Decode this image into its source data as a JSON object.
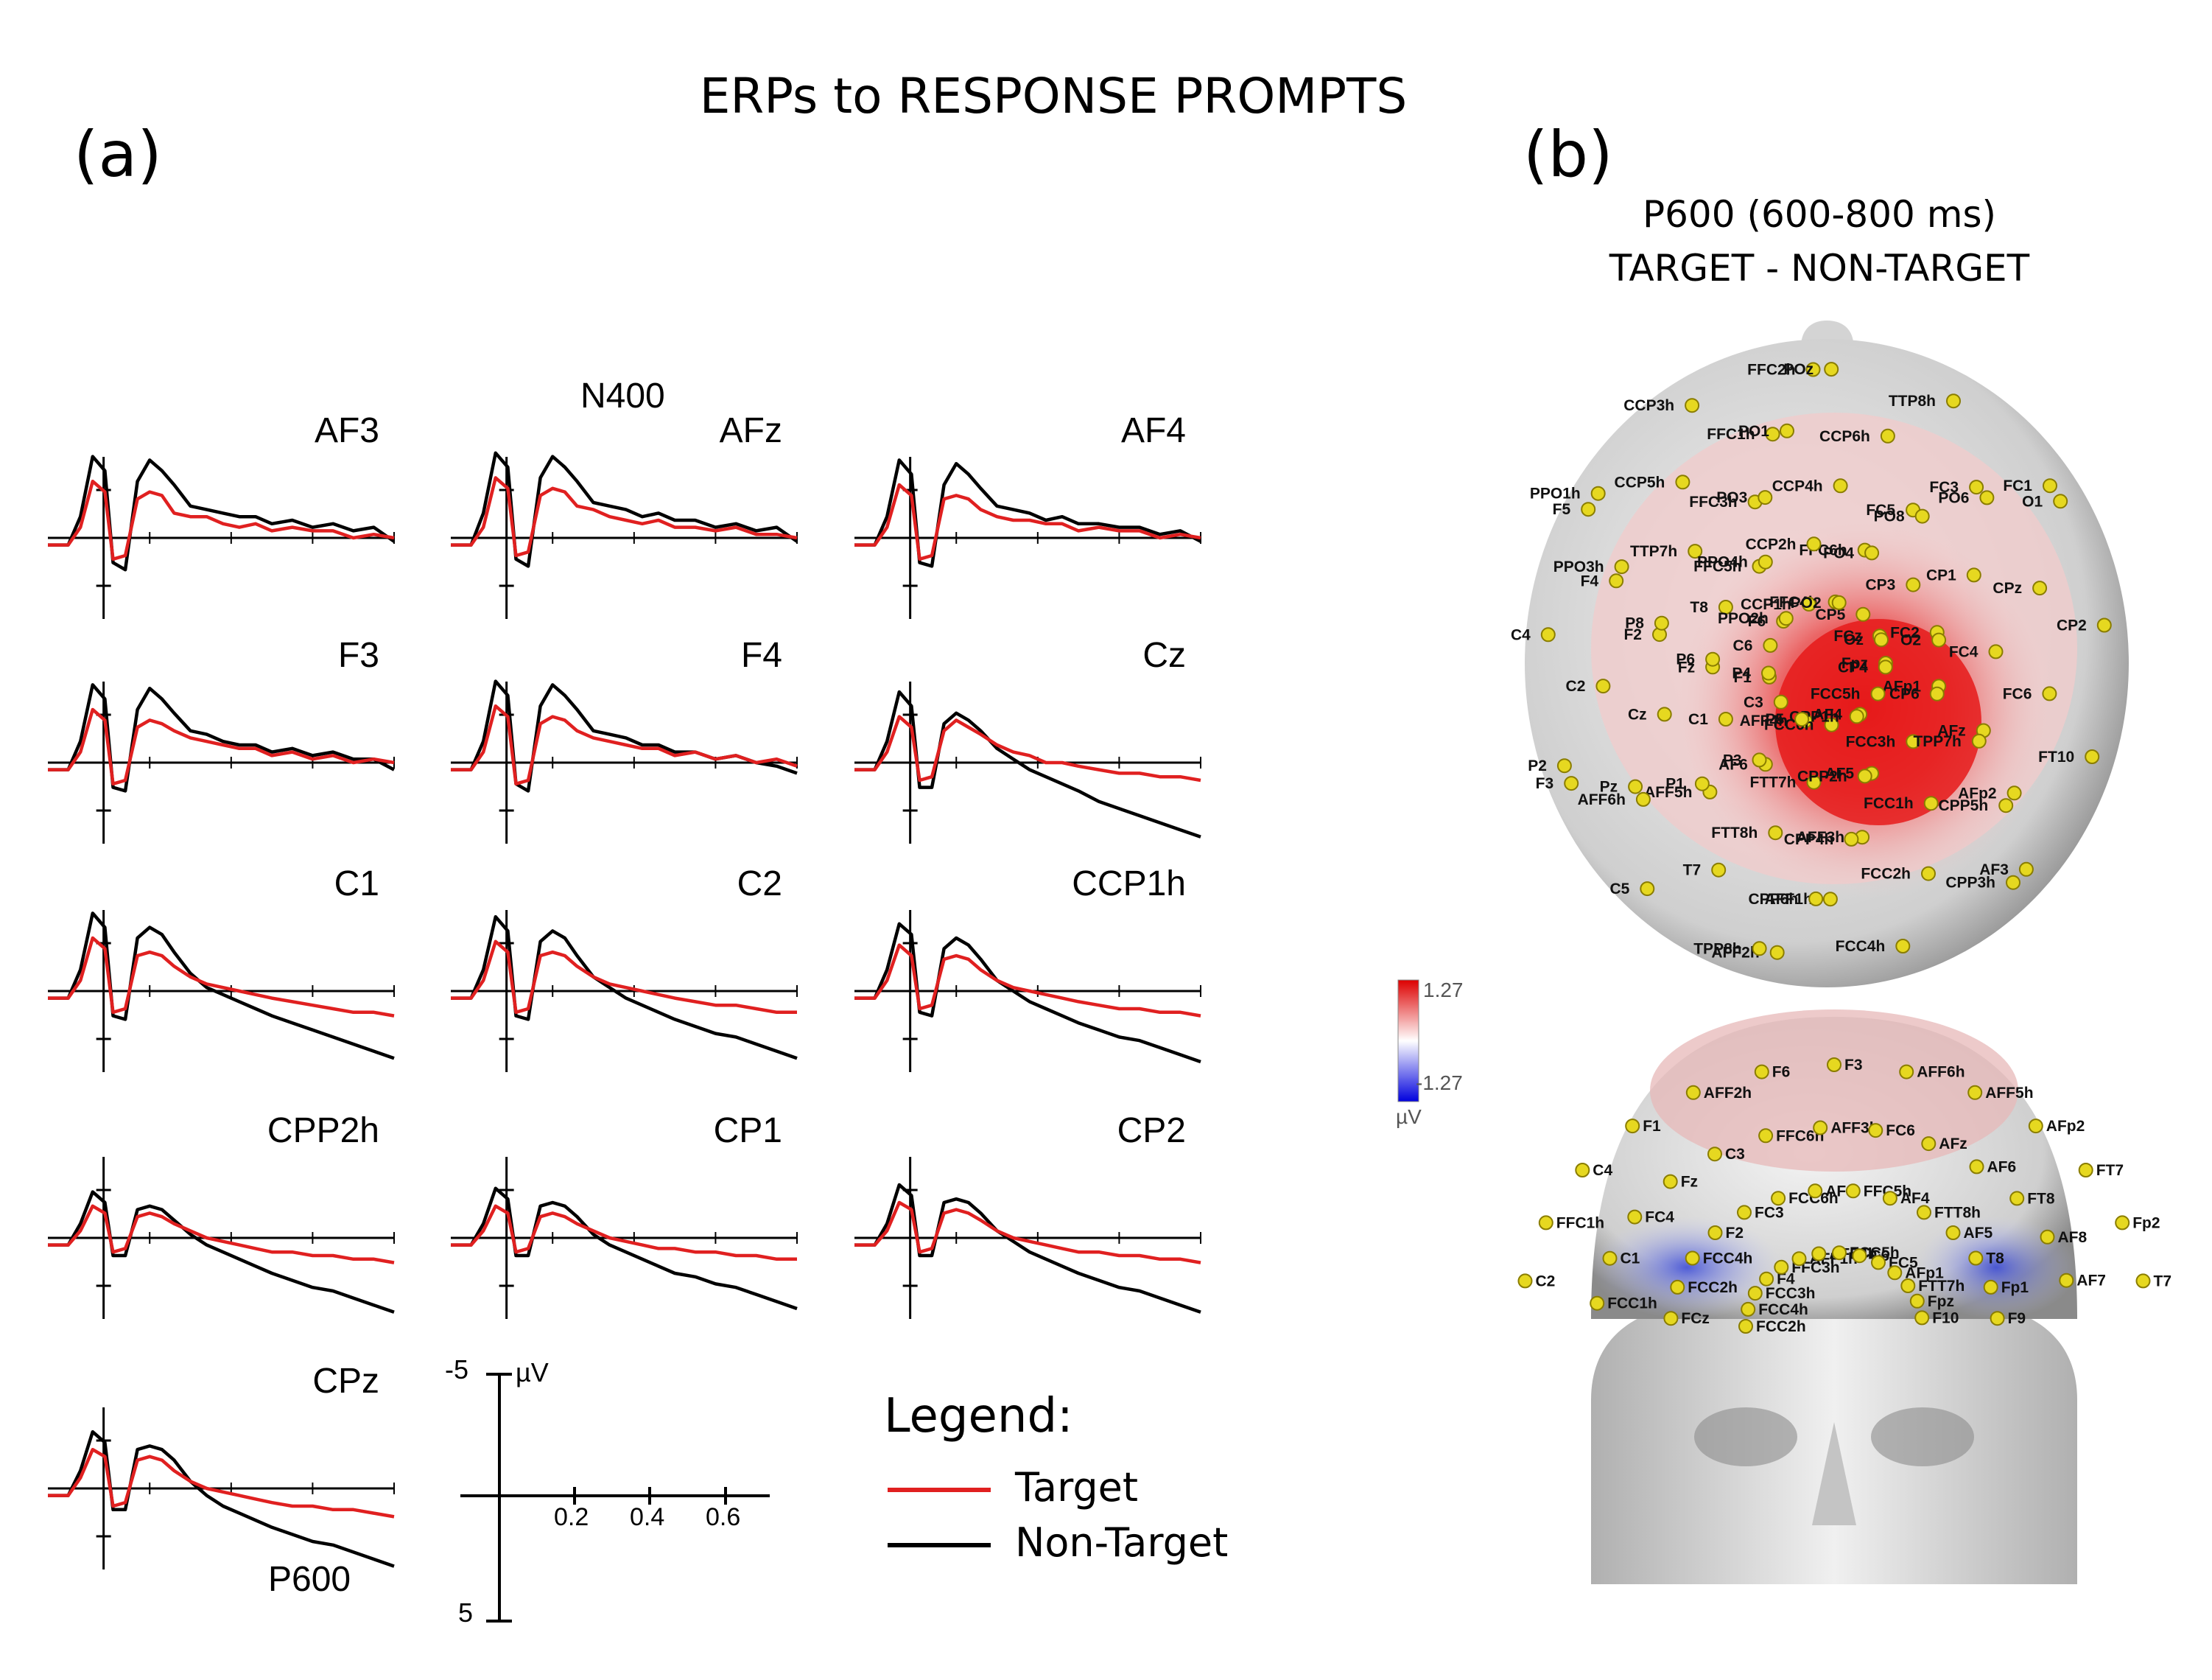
{
  "title": "ERPs to RESPONSE PROMPTS",
  "panel_labels": {
    "a": "(a)",
    "b": "(b)"
  },
  "chart_data": [
    {
      "type": "line",
      "title": "ERPs to RESPONSE PROMPTS (a)",
      "xlabel": "time (s)",
      "ylabel": "µV",
      "xlim": [
        -0.05,
        0.8
      ],
      "ylim": [
        -5,
        5
      ],
      "axis_note": "negative up",
      "scale_bar": {
        "y_top": "-5",
        "y_bottom": "5",
        "unit": "µV",
        "x_ticks": [
          "0.2",
          "0.4",
          "0.6"
        ]
      },
      "annotations": {
        "n400": "N400",
        "p600": "P600"
      },
      "x": [
        -0.05,
        0.0,
        0.03,
        0.06,
        0.09,
        0.11,
        0.14,
        0.17,
        0.2,
        0.23,
        0.26,
        0.3,
        0.34,
        0.38,
        0.42,
        0.46,
        0.5,
        0.55,
        0.6,
        0.65,
        0.7,
        0.75,
        0.8
      ],
      "series_names": [
        "Target",
        "Non-Target"
      ],
      "legend": {
        "title": "Legend:",
        "entries": [
          {
            "name": "Target",
            "color": "#e02020"
          },
          {
            "name": "Non-Target",
            "color": "#000000"
          }
        ]
      },
      "panels": [
        {
          "channel": "AF3",
          "target": [
            0.2,
            0.2,
            -0.3,
            -1.6,
            -1.3,
            0.6,
            0.5,
            -1.1,
            -1.3,
            -1.2,
            -0.7,
            -0.6,
            -0.6,
            -0.4,
            -0.3,
            -0.4,
            -0.2,
            -0.3,
            -0.2,
            -0.2,
            0.0,
            -0.1,
            0.0
          ],
          "nontarget": [
            0.2,
            0.2,
            -0.6,
            -2.3,
            -1.9,
            0.7,
            0.9,
            -1.6,
            -2.2,
            -1.9,
            -1.5,
            -0.9,
            -0.8,
            -0.7,
            -0.6,
            -0.6,
            -0.4,
            -0.5,
            -0.3,
            -0.4,
            -0.2,
            -0.3,
            0.1
          ]
        },
        {
          "channel": "AFz",
          "target": [
            0.2,
            0.2,
            -0.3,
            -1.7,
            -1.4,
            0.5,
            0.4,
            -1.2,
            -1.4,
            -1.3,
            -0.9,
            -0.8,
            -0.6,
            -0.5,
            -0.4,
            -0.5,
            -0.3,
            -0.3,
            -0.2,
            -0.3,
            -0.1,
            -0.1,
            0.0
          ],
          "nontarget": [
            0.2,
            0.2,
            -0.7,
            -2.4,
            -2.0,
            0.6,
            0.8,
            -1.7,
            -2.3,
            -2.0,
            -1.6,
            -1.0,
            -0.9,
            -0.8,
            -0.6,
            -0.7,
            -0.5,
            -0.5,
            -0.3,
            -0.4,
            -0.2,
            -0.3,
            0.1
          ]
        },
        {
          "channel": "AF4",
          "target": [
            0.2,
            0.2,
            -0.3,
            -1.5,
            -1.2,
            0.6,
            0.5,
            -1.1,
            -1.2,
            -1.1,
            -0.8,
            -0.6,
            -0.5,
            -0.5,
            -0.4,
            -0.4,
            -0.2,
            -0.3,
            -0.2,
            -0.2,
            0.0,
            -0.1,
            0.0
          ],
          "nontarget": [
            0.2,
            0.2,
            -0.6,
            -2.2,
            -1.8,
            0.7,
            0.8,
            -1.5,
            -2.1,
            -1.8,
            -1.4,
            -0.9,
            -0.8,
            -0.7,
            -0.5,
            -0.6,
            -0.4,
            -0.4,
            -0.3,
            -0.3,
            -0.1,
            -0.2,
            0.1
          ]
        },
        {
          "channel": "F3",
          "target": [
            0.2,
            0.2,
            -0.3,
            -1.5,
            -1.2,
            0.6,
            0.5,
            -1.0,
            -1.2,
            -1.1,
            -0.9,
            -0.7,
            -0.6,
            -0.5,
            -0.4,
            -0.4,
            -0.2,
            -0.3,
            -0.1,
            -0.2,
            0.0,
            -0.1,
            0.0
          ],
          "nontarget": [
            0.2,
            0.2,
            -0.6,
            -2.2,
            -1.8,
            0.7,
            0.8,
            -1.5,
            -2.1,
            -1.8,
            -1.4,
            -0.9,
            -0.8,
            -0.6,
            -0.5,
            -0.5,
            -0.3,
            -0.4,
            -0.2,
            -0.3,
            -0.1,
            -0.1,
            0.2
          ]
        },
        {
          "channel": "F4",
          "target": [
            0.2,
            0.2,
            -0.3,
            -1.6,
            -1.3,
            0.6,
            0.5,
            -1.1,
            -1.3,
            -1.2,
            -0.9,
            -0.7,
            -0.6,
            -0.5,
            -0.4,
            -0.4,
            -0.2,
            -0.3,
            -0.1,
            -0.2,
            0.0,
            -0.1,
            0.1
          ],
          "nontarget": [
            0.2,
            0.2,
            -0.6,
            -2.3,
            -1.9,
            0.6,
            0.8,
            -1.6,
            -2.2,
            -1.9,
            -1.5,
            -0.9,
            -0.8,
            -0.7,
            -0.5,
            -0.5,
            -0.3,
            -0.3,
            -0.1,
            -0.2,
            0.0,
            0.1,
            0.3
          ]
        },
        {
          "channel": "Cz",
          "target": [
            0.2,
            0.2,
            -0.3,
            -1.3,
            -1.0,
            0.5,
            0.4,
            -0.9,
            -1.2,
            -1.0,
            -0.8,
            -0.5,
            -0.3,
            -0.2,
            0.0,
            0.0,
            0.1,
            0.2,
            0.3,
            0.3,
            0.4,
            0.4,
            0.5
          ],
          "nontarget": [
            0.2,
            0.2,
            -0.6,
            -2.0,
            -1.6,
            0.7,
            0.7,
            -1.1,
            -1.4,
            -1.2,
            -0.9,
            -0.4,
            -0.1,
            0.2,
            0.4,
            0.6,
            0.8,
            1.1,
            1.3,
            1.5,
            1.7,
            1.9,
            2.1
          ]
        },
        {
          "channel": "C1",
          "target": [
            0.2,
            0.2,
            -0.3,
            -1.5,
            -1.2,
            0.6,
            0.5,
            -1.0,
            -1.1,
            -1.0,
            -0.7,
            -0.4,
            -0.2,
            -0.1,
            0.0,
            0.1,
            0.2,
            0.3,
            0.4,
            0.5,
            0.6,
            0.6,
            0.7
          ],
          "nontarget": [
            0.2,
            0.2,
            -0.6,
            -2.2,
            -1.8,
            0.7,
            0.8,
            -1.5,
            -1.8,
            -1.6,
            -1.1,
            -0.5,
            -0.1,
            0.1,
            0.3,
            0.5,
            0.7,
            0.9,
            1.1,
            1.3,
            1.5,
            1.7,
            1.9
          ]
        },
        {
          "channel": "C2",
          "target": [
            0.2,
            0.2,
            -0.3,
            -1.4,
            -1.1,
            0.6,
            0.5,
            -1.0,
            -1.1,
            -1.0,
            -0.7,
            -0.4,
            -0.2,
            -0.1,
            0.0,
            0.1,
            0.2,
            0.3,
            0.4,
            0.4,
            0.5,
            0.6,
            0.6
          ],
          "nontarget": [
            0.2,
            0.2,
            -0.6,
            -2.1,
            -1.7,
            0.7,
            0.8,
            -1.4,
            -1.7,
            -1.5,
            -1.0,
            -0.4,
            -0.1,
            0.2,
            0.4,
            0.6,
            0.8,
            1.0,
            1.2,
            1.3,
            1.5,
            1.7,
            1.9
          ]
        },
        {
          "channel": "CCP1h",
          "target": [
            0.2,
            0.2,
            -0.3,
            -1.3,
            -1.0,
            0.5,
            0.4,
            -0.9,
            -1.0,
            -0.9,
            -0.6,
            -0.3,
            -0.1,
            0.0,
            0.1,
            0.2,
            0.3,
            0.4,
            0.5,
            0.5,
            0.6,
            0.6,
            0.7
          ],
          "nontarget": [
            0.2,
            0.2,
            -0.6,
            -1.9,
            -1.6,
            0.6,
            0.7,
            -1.2,
            -1.5,
            -1.3,
            -0.9,
            -0.3,
            0.0,
            0.3,
            0.5,
            0.7,
            0.9,
            1.1,
            1.3,
            1.4,
            1.6,
            1.8,
            2.0
          ]
        },
        {
          "channel": "CPP2h",
          "target": [
            0.2,
            0.2,
            -0.2,
            -0.9,
            -0.7,
            0.4,
            0.3,
            -0.6,
            -0.7,
            -0.6,
            -0.4,
            -0.2,
            0.0,
            0.1,
            0.2,
            0.3,
            0.4,
            0.4,
            0.5,
            0.5,
            0.6,
            0.6,
            0.7
          ],
          "nontarget": [
            0.2,
            0.2,
            -0.4,
            -1.3,
            -1.0,
            0.5,
            0.5,
            -0.8,
            -0.9,
            -0.8,
            -0.5,
            -0.1,
            0.2,
            0.4,
            0.6,
            0.8,
            1.0,
            1.2,
            1.4,
            1.5,
            1.7,
            1.9,
            2.1
          ]
        },
        {
          "channel": "CP1",
          "target": [
            0.2,
            0.2,
            -0.2,
            -0.9,
            -0.7,
            0.4,
            0.3,
            -0.6,
            -0.7,
            -0.6,
            -0.4,
            -0.2,
            0.0,
            0.1,
            0.2,
            0.3,
            0.3,
            0.4,
            0.4,
            0.5,
            0.5,
            0.6,
            0.6
          ],
          "nontarget": [
            0.2,
            0.2,
            -0.4,
            -1.4,
            -1.1,
            0.5,
            0.5,
            -0.9,
            -1.0,
            -0.9,
            -0.6,
            -0.1,
            0.2,
            0.4,
            0.6,
            0.8,
            1.0,
            1.1,
            1.3,
            1.4,
            1.6,
            1.8,
            2.0
          ]
        },
        {
          "channel": "CP2",
          "target": [
            0.2,
            0.2,
            -0.2,
            -1.0,
            -0.8,
            0.4,
            0.3,
            -0.7,
            -0.8,
            -0.7,
            -0.5,
            -0.2,
            0.0,
            0.1,
            0.2,
            0.3,
            0.4,
            0.4,
            0.5,
            0.5,
            0.6,
            0.6,
            0.7
          ],
          "nontarget": [
            0.2,
            0.2,
            -0.4,
            -1.5,
            -1.2,
            0.5,
            0.5,
            -1.0,
            -1.1,
            -1.0,
            -0.7,
            -0.2,
            0.1,
            0.4,
            0.6,
            0.8,
            1.0,
            1.2,
            1.4,
            1.5,
            1.7,
            1.9,
            2.1
          ]
        },
        {
          "channel": "CPz",
          "target": [
            0.2,
            0.2,
            -0.3,
            -1.1,
            -0.9,
            0.5,
            0.4,
            -0.8,
            -0.9,
            -0.8,
            -0.5,
            -0.2,
            0.0,
            0.1,
            0.2,
            0.3,
            0.4,
            0.5,
            0.5,
            0.6,
            0.6,
            0.7,
            0.8
          ],
          "nontarget": [
            0.2,
            0.2,
            -0.5,
            -1.6,
            -1.3,
            0.6,
            0.6,
            -1.1,
            -1.2,
            -1.1,
            -0.8,
            -0.2,
            0.2,
            0.5,
            0.7,
            0.9,
            1.1,
            1.3,
            1.5,
            1.6,
            1.8,
            2.0,
            2.2
          ]
        }
      ]
    },
    {
      "type": "heatmap",
      "title": "P600 (600-800 ms)",
      "subtitle": "TARGET - NON-TARGET",
      "colorbar": {
        "max": "1.27",
        "min": "-1.27",
        "unit": "µV",
        "colors": [
          "#0000dd",
          "#ffffff",
          "#dd0000"
        ]
      },
      "views": [
        "top",
        "front"
      ],
      "top_view_electrodes": [
        "Fpz",
        "AFp1",
        "AFz",
        "AFp2",
        "AF3",
        "AF4",
        "AF5",
        "AFF3h",
        "AFF1h",
        "AFF2h",
        "AFF4h",
        "AF6",
        "AFF5h",
        "AFF6h",
        "F3",
        "F1",
        "Fz",
        "F2",
        "F4",
        "F5",
        "F6",
        "FFC5h",
        "FFC3h",
        "FFC1h",
        "FFC2h",
        "FFC4h",
        "FFC6h",
        "FC5",
        "FC3",
        "FC1",
        "FCz",
        "FC2",
        "FC4",
        "FC6",
        "FT10",
        "FCC5h",
        "FCC3h",
        "FCC1h",
        "FCC2h",
        "FCC4h",
        "FCC6h",
        "FTT7h",
        "FTT8h",
        "T7",
        "C5",
        "C3",
        "C1",
        "Cz",
        "C2",
        "C4",
        "C6",
        "T8",
        "TTP7h",
        "CCP5h",
        "CCP3h",
        "CCP1h",
        "CCP2h",
        "CCP4h",
        "CCP6h",
        "TTP8h",
        "CP5",
        "CP3",
        "CP1",
        "CPz",
        "CP2",
        "CP4",
        "CP6",
        "TPP7h",
        "CPP5h",
        "CPP3h",
        "CPP1h",
        "CPP2h",
        "CPP4h",
        "CPP6h",
        "TPP8h",
        "P5",
        "P3",
        "P1",
        "Pz",
        "P2",
        "P4",
        "P6",
        "P8",
        "PPO3h",
        "PPO1h",
        "PPO2h",
        "PPO4h",
        "PO3",
        "PO1",
        "POz",
        "PO2",
        "PO4",
        "PO8",
        "PO6",
        "O1",
        "Oz",
        "O2"
      ],
      "front_view_electrodes": [
        "FCC2h",
        "FCz",
        "FCC1h",
        "C2",
        "FCC4h",
        "FCC2h",
        "C1",
        "FFC1h",
        "FCC3h",
        "FCC4h",
        "FC4",
        "C4",
        "F4",
        "F2",
        "Fz",
        "F1",
        "FFC3h",
        "FC3",
        "C3",
        "AFF2h",
        "AFF1h",
        "FCC6h",
        "FFC6h",
        "F6",
        "AFF4h",
        "AF3",
        "AFF3h",
        "F3",
        "FCC5h",
        "FFC5h",
        "FC6",
        "AFF6h",
        "C6",
        "AF4",
        "AFz",
        "AFF5h",
        "FC5",
        "FTT8h",
        "AF6",
        "AFp2",
        "AFp1",
        "AF5",
        "FT8",
        "FT7",
        "FTT7h",
        "T8",
        "AF8",
        "Fp2",
        "Fpz",
        "Fp1",
        "AF7",
        "T7",
        "F10",
        "F9"
      ]
    }
  ]
}
